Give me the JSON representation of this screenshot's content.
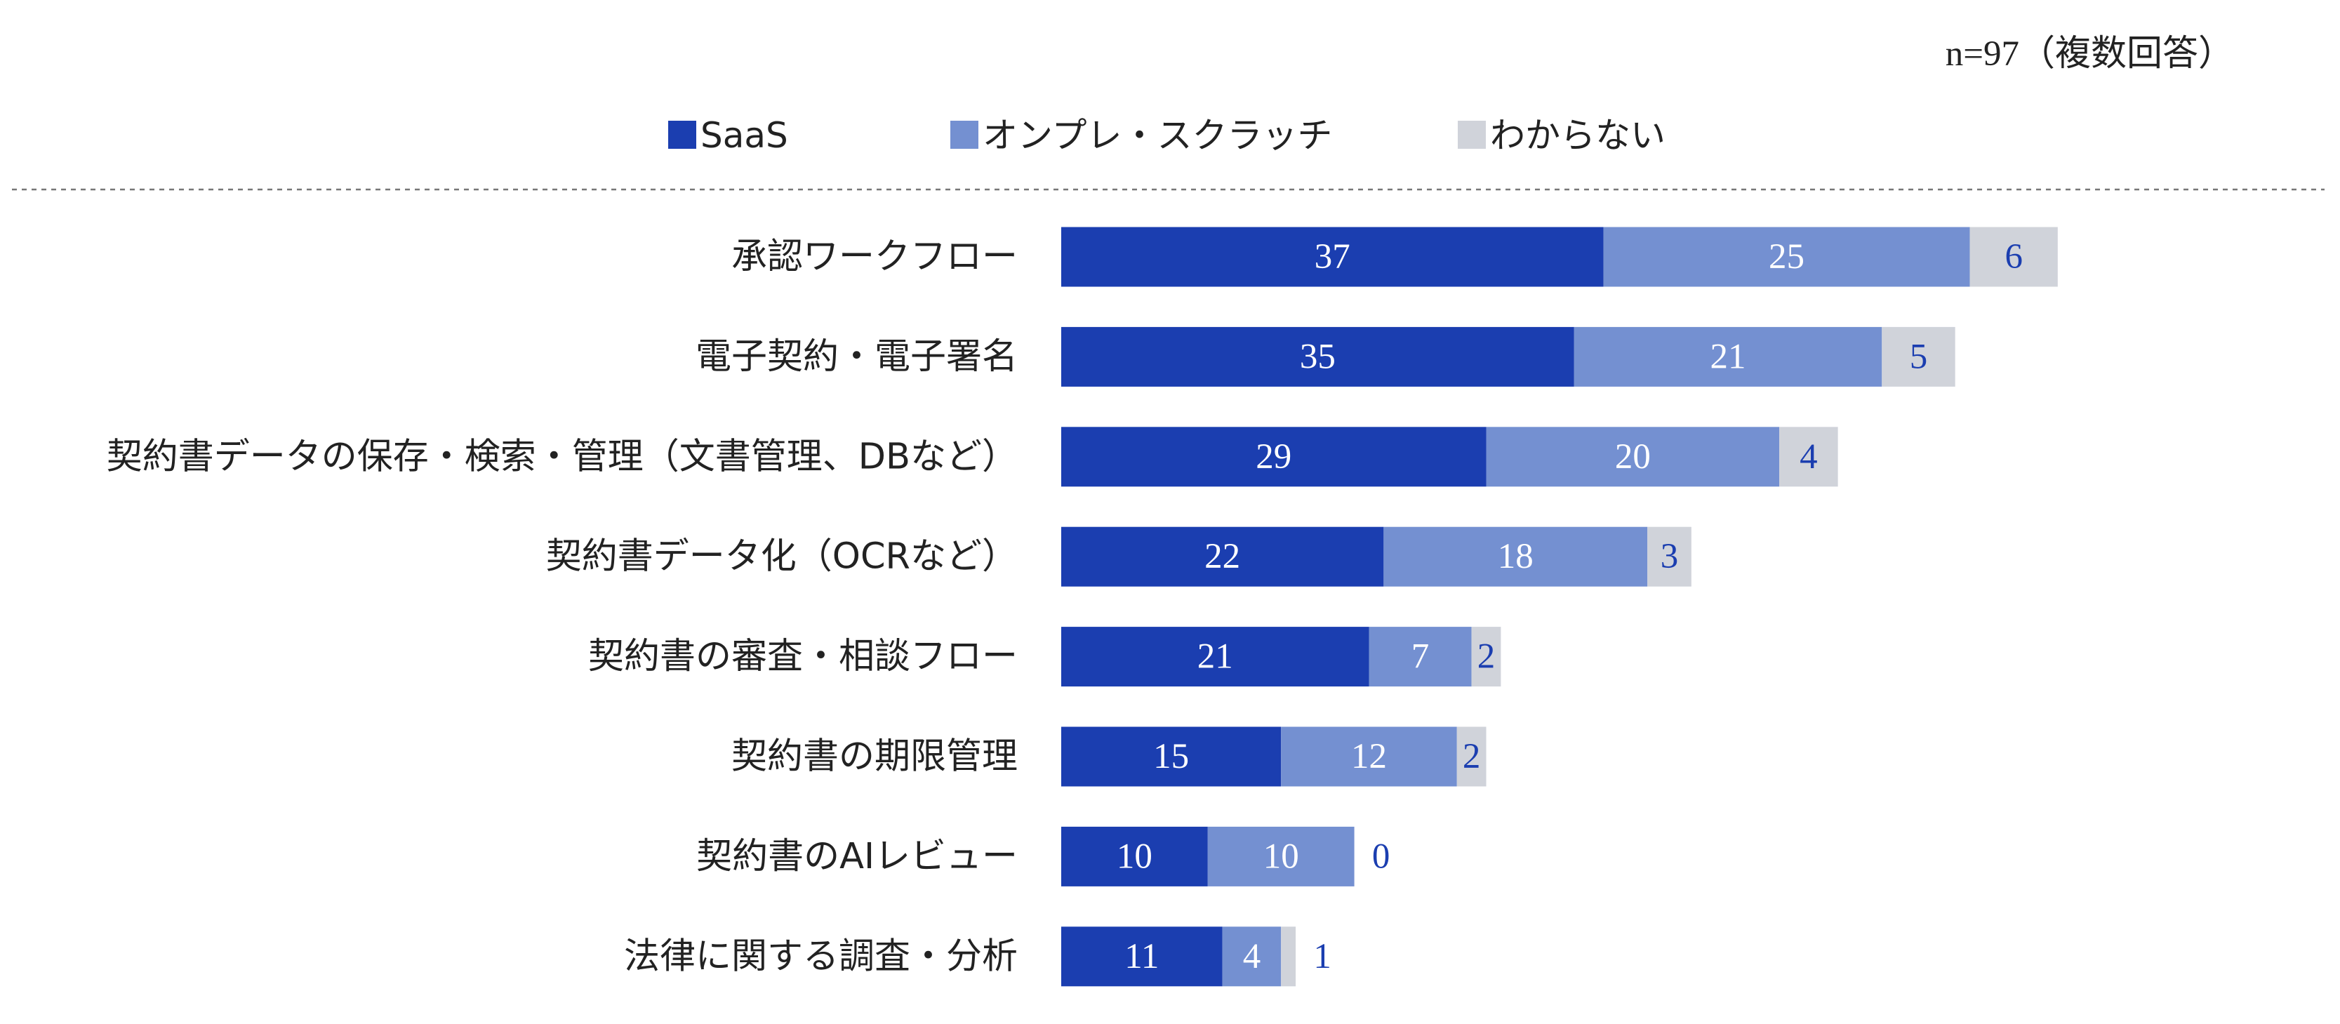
{
  "chart_data": {
    "type": "stacked-barh",
    "annotation": "n=97（複数回答）",
    "categories": [
      "承認ワークフロー",
      "電子契約・電子署名",
      "契約書データの保存・検索・管理（文書管理、DBなど）",
      "契約書データ化（OCRなど）",
      "契約書の審査・相談フロー",
      "契約書の期限管理",
      "契約書のAIレビュー",
      "法律に関する調査・分析"
    ],
    "series": [
      {
        "name": "SaaS",
        "color": "#1b3eb0",
        "values": [
          37,
          35,
          29,
          22,
          21,
          15,
          10,
          11
        ]
      },
      {
        "name": "オンプレ・スクラッチ",
        "color": "#7490d1",
        "values": [
          25,
          21,
          20,
          18,
          7,
          12,
          10,
          4
        ]
      },
      {
        "name": "わからない",
        "color": "#d0d3da",
        "values": [
          6,
          5,
          4,
          3,
          2,
          2,
          0,
          1
        ]
      }
    ],
    "legend": "top"
  }
}
